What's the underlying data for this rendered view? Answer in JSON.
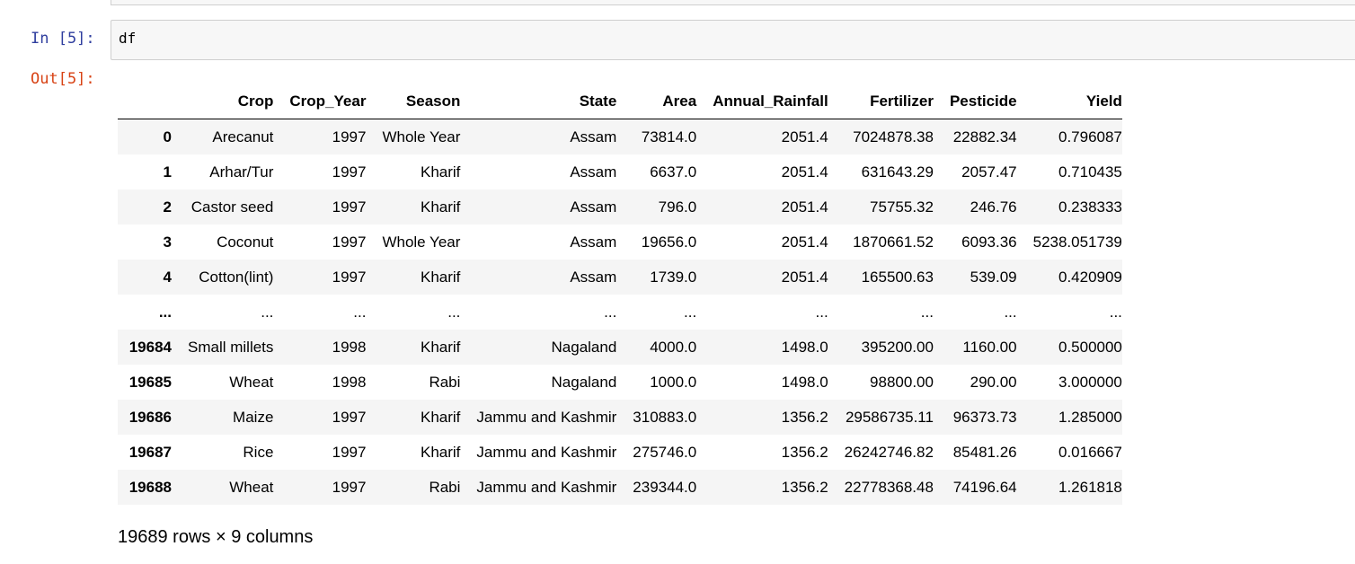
{
  "cell": {
    "in_prompt": "In [5]:",
    "code": "df",
    "out_prompt": "Out[5]:"
  },
  "table": {
    "columns": [
      "",
      "Crop",
      "Crop_Year",
      "Season",
      "State",
      "Area",
      "Annual_Rainfall",
      "Fertilizer",
      "Pesticide",
      "Yield"
    ],
    "rows": [
      [
        "0",
        "Arecanut",
        "1997",
        "Whole Year",
        "Assam",
        "73814.0",
        "2051.4",
        "7024878.38",
        "22882.34",
        "0.796087"
      ],
      [
        "1",
        "Arhar/Tur",
        "1997",
        "Kharif",
        "Assam",
        "6637.0",
        "2051.4",
        "631643.29",
        "2057.47",
        "0.710435"
      ],
      [
        "2",
        "Castor seed",
        "1997",
        "Kharif",
        "Assam",
        "796.0",
        "2051.4",
        "75755.32",
        "246.76",
        "0.238333"
      ],
      [
        "3",
        "Coconut",
        "1997",
        "Whole Year",
        "Assam",
        "19656.0",
        "2051.4",
        "1870661.52",
        "6093.36",
        "5238.051739"
      ],
      [
        "4",
        "Cotton(lint)",
        "1997",
        "Kharif",
        "Assam",
        "1739.0",
        "2051.4",
        "165500.63",
        "539.09",
        "0.420909"
      ],
      [
        "...",
        "...",
        "...",
        "...",
        "...",
        "...",
        "...",
        "...",
        "...",
        "..."
      ],
      [
        "19684",
        "Small millets",
        "1998",
        "Kharif",
        "Nagaland",
        "4000.0",
        "1498.0",
        "395200.00",
        "1160.00",
        "0.500000"
      ],
      [
        "19685",
        "Wheat",
        "1998",
        "Rabi",
        "Nagaland",
        "1000.0",
        "1498.0",
        "98800.00",
        "290.00",
        "3.000000"
      ],
      [
        "19686",
        "Maize",
        "1997",
        "Kharif",
        "Jammu and Kashmir",
        "310883.0",
        "1356.2",
        "29586735.11",
        "96373.73",
        "1.285000"
      ],
      [
        "19687",
        "Rice",
        "1997",
        "Kharif",
        "Jammu and Kashmir",
        "275746.0",
        "1356.2",
        "26242746.82",
        "85481.26",
        "0.016667"
      ],
      [
        "19688",
        "Wheat",
        "1997",
        "Rabi",
        "Jammu and Kashmir",
        "239344.0",
        "1356.2",
        "22778368.48",
        "74196.64",
        "1.261818"
      ]
    ],
    "summary": "19689 rows × 9 columns"
  }
}
